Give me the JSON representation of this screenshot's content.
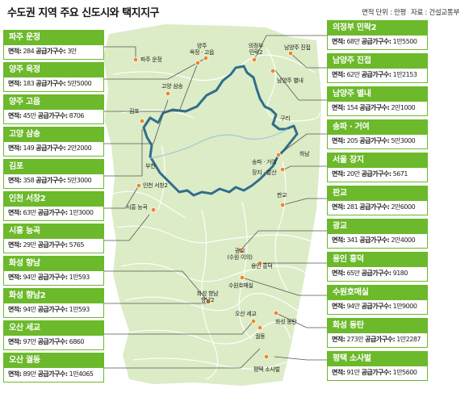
{
  "title": "수도권 지역 주요 신도시와 택지지구",
  "unit_label": "면적 단위 : 만평",
  "source_label": "자료 : 건설교통부",
  "area_prefix": "면적:",
  "households_prefix": "공급가구수:",
  "left_cards": [
    {
      "name": "파주 운정",
      "area": "284",
      "households": "3만"
    },
    {
      "name": "양주 옥정",
      "area": "183",
      "households": "5만5000"
    },
    {
      "name": "양주 고읍",
      "area": "45만",
      "households": "8706"
    },
    {
      "name": "고양 삼송",
      "area": "149",
      "households": "2만2000"
    },
    {
      "name": "김포",
      "area": "358",
      "households": "5만3000"
    },
    {
      "name": "인천 서창2",
      "area": "63만",
      "households": "1만3000"
    },
    {
      "name": "시흥 능곡",
      "area": "29만",
      "households": "5765"
    },
    {
      "name": "화성 향남",
      "area": "94만",
      "households": "1만593"
    },
    {
      "name": "화성 향남2",
      "area": "94만",
      "households": "1만593"
    },
    {
      "name": "오산 세교",
      "area": "97만",
      "households": "6860"
    },
    {
      "name": "오산 궐동",
      "area": "89만",
      "households": "1만4065"
    }
  ],
  "right_cards": [
    {
      "name": "의정부 민락2",
      "area": "68만",
      "households": "1만5500"
    },
    {
      "name": "남양주 진접",
      "area": "62만",
      "households": "1만2153"
    },
    {
      "name": "남양주 별내",
      "area": "154",
      "households": "2만1000"
    },
    {
      "name": "송파 · 거여",
      "area": "205",
      "households": "5만3000"
    },
    {
      "name": "서울 장지",
      "area": "20만",
      "households": "5671"
    },
    {
      "name": "판교",
      "area": "281",
      "households": "2만6000"
    },
    {
      "name": "광교",
      "area": "341",
      "households": "2만4000"
    },
    {
      "name": "용인 흥덕",
      "area": "65만",
      "households": "9180"
    },
    {
      "name": "수원호매실",
      "area": "94만",
      "households": "1만9000"
    },
    {
      "name": "화성 동탄",
      "area": "273만",
      "households": "1만2287"
    },
    {
      "name": "평택 소사벌",
      "area": "91만",
      "households": "1만5600"
    }
  ],
  "map_labels": {
    "paju": "파주 운정",
    "yangju": "양주",
    "yangju_sub": "옥정 · 고읍",
    "uijeongbu": "의정부",
    "uijeongbu_sub": "민락2",
    "njj": "남양주 진접",
    "njb": "남양주 별내",
    "goyang": "고양 삼송",
    "gimpo": "김포",
    "guri": "구리",
    "hanam": "하남",
    "songpa": "송파 · 거여",
    "jangji": "장지 · 발산",
    "bucheon": "부천",
    "incheon": "인천 서창2",
    "pangyo": "판교",
    "siheung": "시흥 능곡",
    "gwanggyo": "광교",
    "gwanggyo_sub": "(수원 이의)",
    "yongin": "용인 흥덕",
    "suwon": "수원호매실",
    "hwaseong": "화성 향남",
    "hwaseong2": "향남2",
    "osan": "오산 세교",
    "dongtan": "화성 동탄",
    "gwoldong": "궐동",
    "pyeongtaek": "평택 소사벌"
  },
  "colors": {
    "card_green": "#6cb92b",
    "map_land": "#dcecc6",
    "seoul_border": "#2f6e8c",
    "marker": "#e8882a",
    "leader": "#555555"
  }
}
